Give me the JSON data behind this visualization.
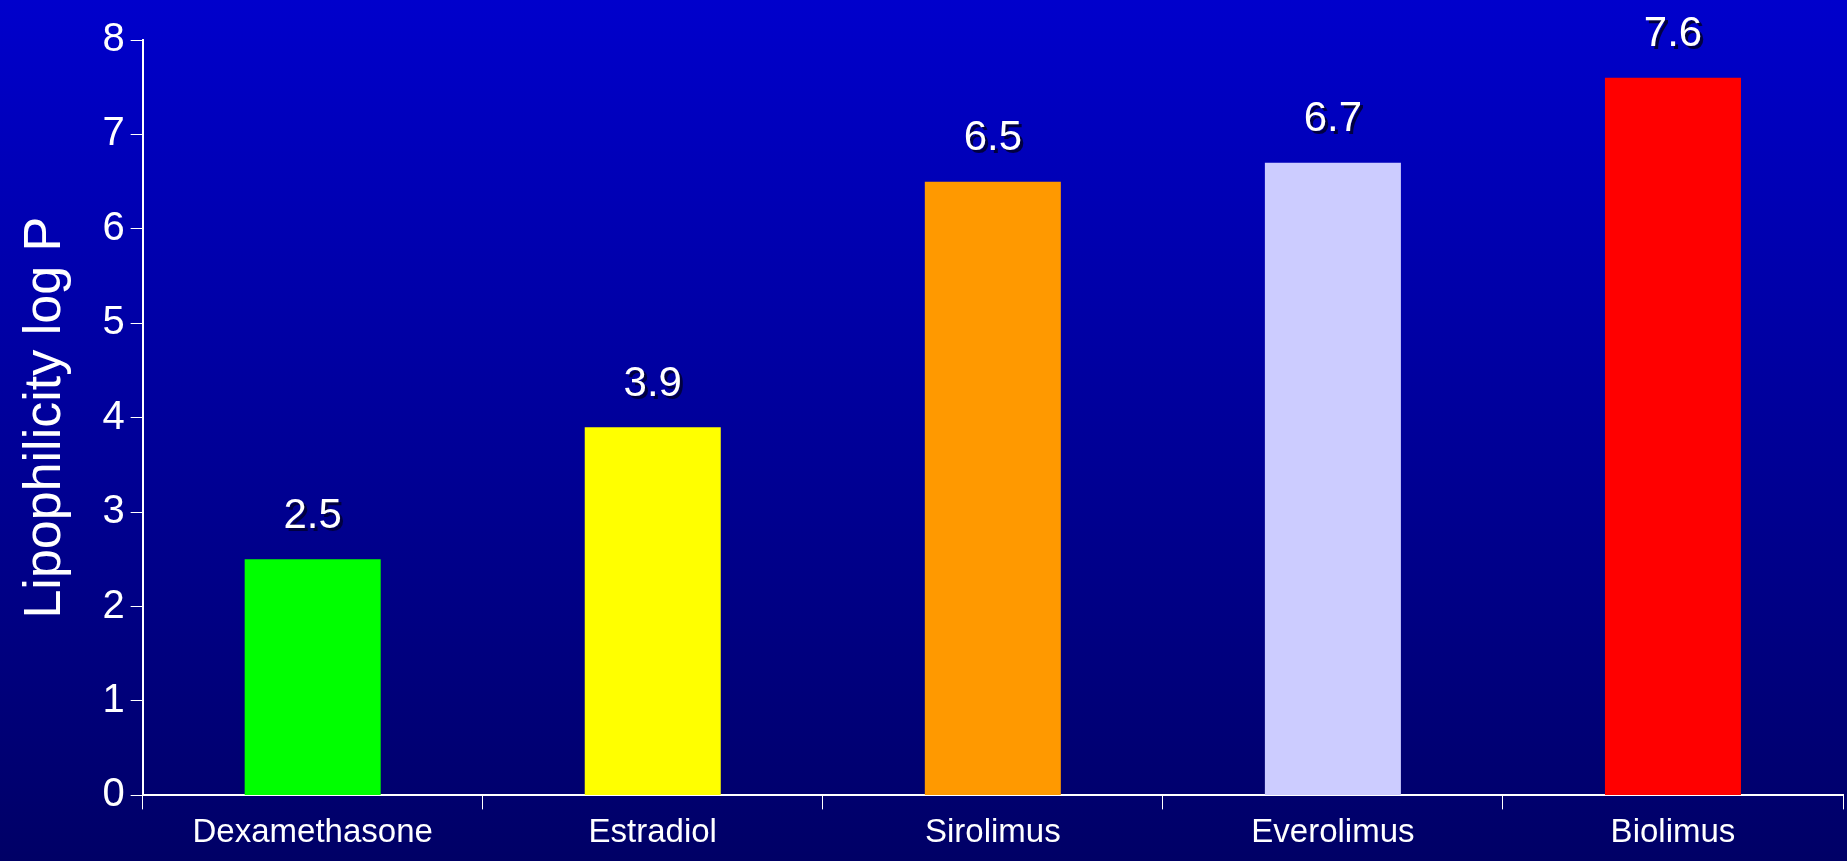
{
  "chart_data": {
    "type": "bar",
    "ylabel": "Lipophilicity log P",
    "categories": [
      "Dexamethasone",
      "Estradiol",
      "Sirolimus",
      "Everolimus",
      "Biolimus"
    ],
    "values": [
      2.5,
      3.9,
      6.5,
      6.7,
      7.6
    ],
    "colors": [
      "#00ff00",
      "#ffff00",
      "#ff9900",
      "#ccccff",
      "#ff0000"
    ],
    "ylim": [
      0,
      8
    ],
    "yticks": [
      0,
      1,
      2,
      3,
      4,
      5,
      6,
      7,
      8
    ],
    "grid": false,
    "legend": false,
    "data_labels": true
  }
}
